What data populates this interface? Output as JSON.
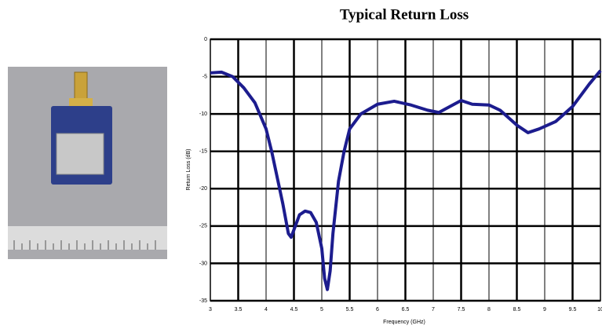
{
  "chart_data": {
    "type": "line",
    "title": "Typical Return Loss",
    "x_label": "Frequency (GHz)",
    "y_label": "Return Loss (dB)",
    "x": [
      3.0,
      3.2,
      3.4,
      3.6,
      3.8,
      4.0,
      4.1,
      4.2,
      4.3,
      4.4,
      4.45,
      4.5,
      4.6,
      4.7,
      4.8,
      4.9,
      5.0,
      5.05,
      5.1,
      5.15,
      5.2,
      5.3,
      5.4,
      5.5,
      5.7,
      6.0,
      6.3,
      6.6,
      6.9,
      7.1,
      7.3,
      7.5,
      7.7,
      8.0,
      8.2,
      8.5,
      8.7,
      8.9,
      9.2,
      9.5,
      9.8,
      10.0
    ],
    "values": [
      -4.5,
      -4.4,
      -5,
      -6.5,
      -8.5,
      -12,
      -15,
      -18.5,
      -22,
      -26,
      -26.5,
      -25.5,
      -23.5,
      -23,
      -23.2,
      -24.5,
      -28,
      -32,
      -33.5,
      -31,
      -26,
      -19,
      -15,
      -12,
      -10,
      -8.7,
      -8.3,
      -8.8,
      -9.5,
      -9.8,
      -9,
      -8.2,
      -8.7,
      -8.8,
      -9.5,
      -11.5,
      -12.5,
      -12,
      -11,
      -9,
      -6,
      -4.2
    ],
    "color": "#1c1c8e",
    "xlim": [
      3,
      10
    ],
    "xticks": [
      3,
      3.5,
      4,
      4.5,
      5,
      5.5,
      6,
      6.5,
      7,
      7.5,
      8,
      8.5,
      9,
      9.5,
      10
    ],
    "ylim": [
      -35,
      0
    ],
    "yticks": [
      0,
      -5,
      -10,
      -15,
      -20,
      -25,
      -30,
      -35
    ],
    "grid": true
  }
}
